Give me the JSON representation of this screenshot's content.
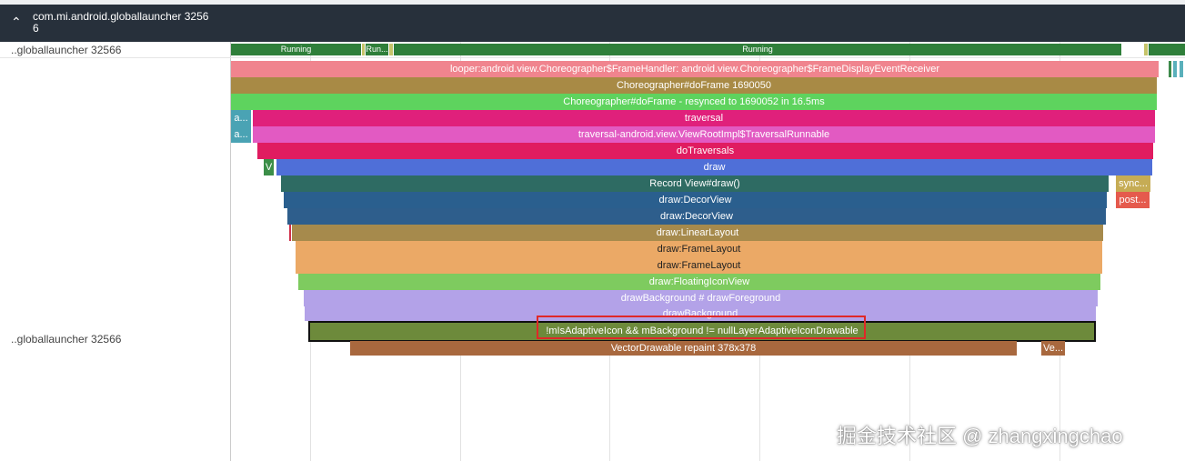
{
  "header": {
    "title": "com.mi.android.globallauncher 32566"
  },
  "tracks": [
    {
      "label": "..globallauncher 32566"
    },
    {
      "label": "..globallauncher 32566"
    }
  ],
  "states": [
    "Running",
    "Run...",
    "Running"
  ],
  "slices": [
    "looper:android.view.Choreographer$FrameHandler: android.view.Choreographer$FrameDisplayEventReceiver",
    "Choreographer#doFrame 1690050",
    "Choreographer#doFrame - resynced to 1690052 in 16.5ms",
    "a...",
    "traversal",
    "a...",
    "traversal-android.view.ViewRootImpl$TraversalRunnable",
    "doTraversals",
    "V",
    "draw",
    "Record View#draw()",
    "sync...",
    "draw:DecorView",
    "post...",
    "draw:DecorView",
    "draw:LinearLayout",
    "draw:FrameLayout",
    "draw:FrameLayout",
    "draw:FloatingIconView",
    "drawBackground # drawForeground",
    "drawBackground",
    "!mIsAdaptiveIcon && mBackground != nullLayerAdaptiveIconDrawable",
    "VectorDrawable repaint 378x378",
    "Ve..."
  ],
  "watermark": "掘金技术社区 @ zhangxingchao"
}
